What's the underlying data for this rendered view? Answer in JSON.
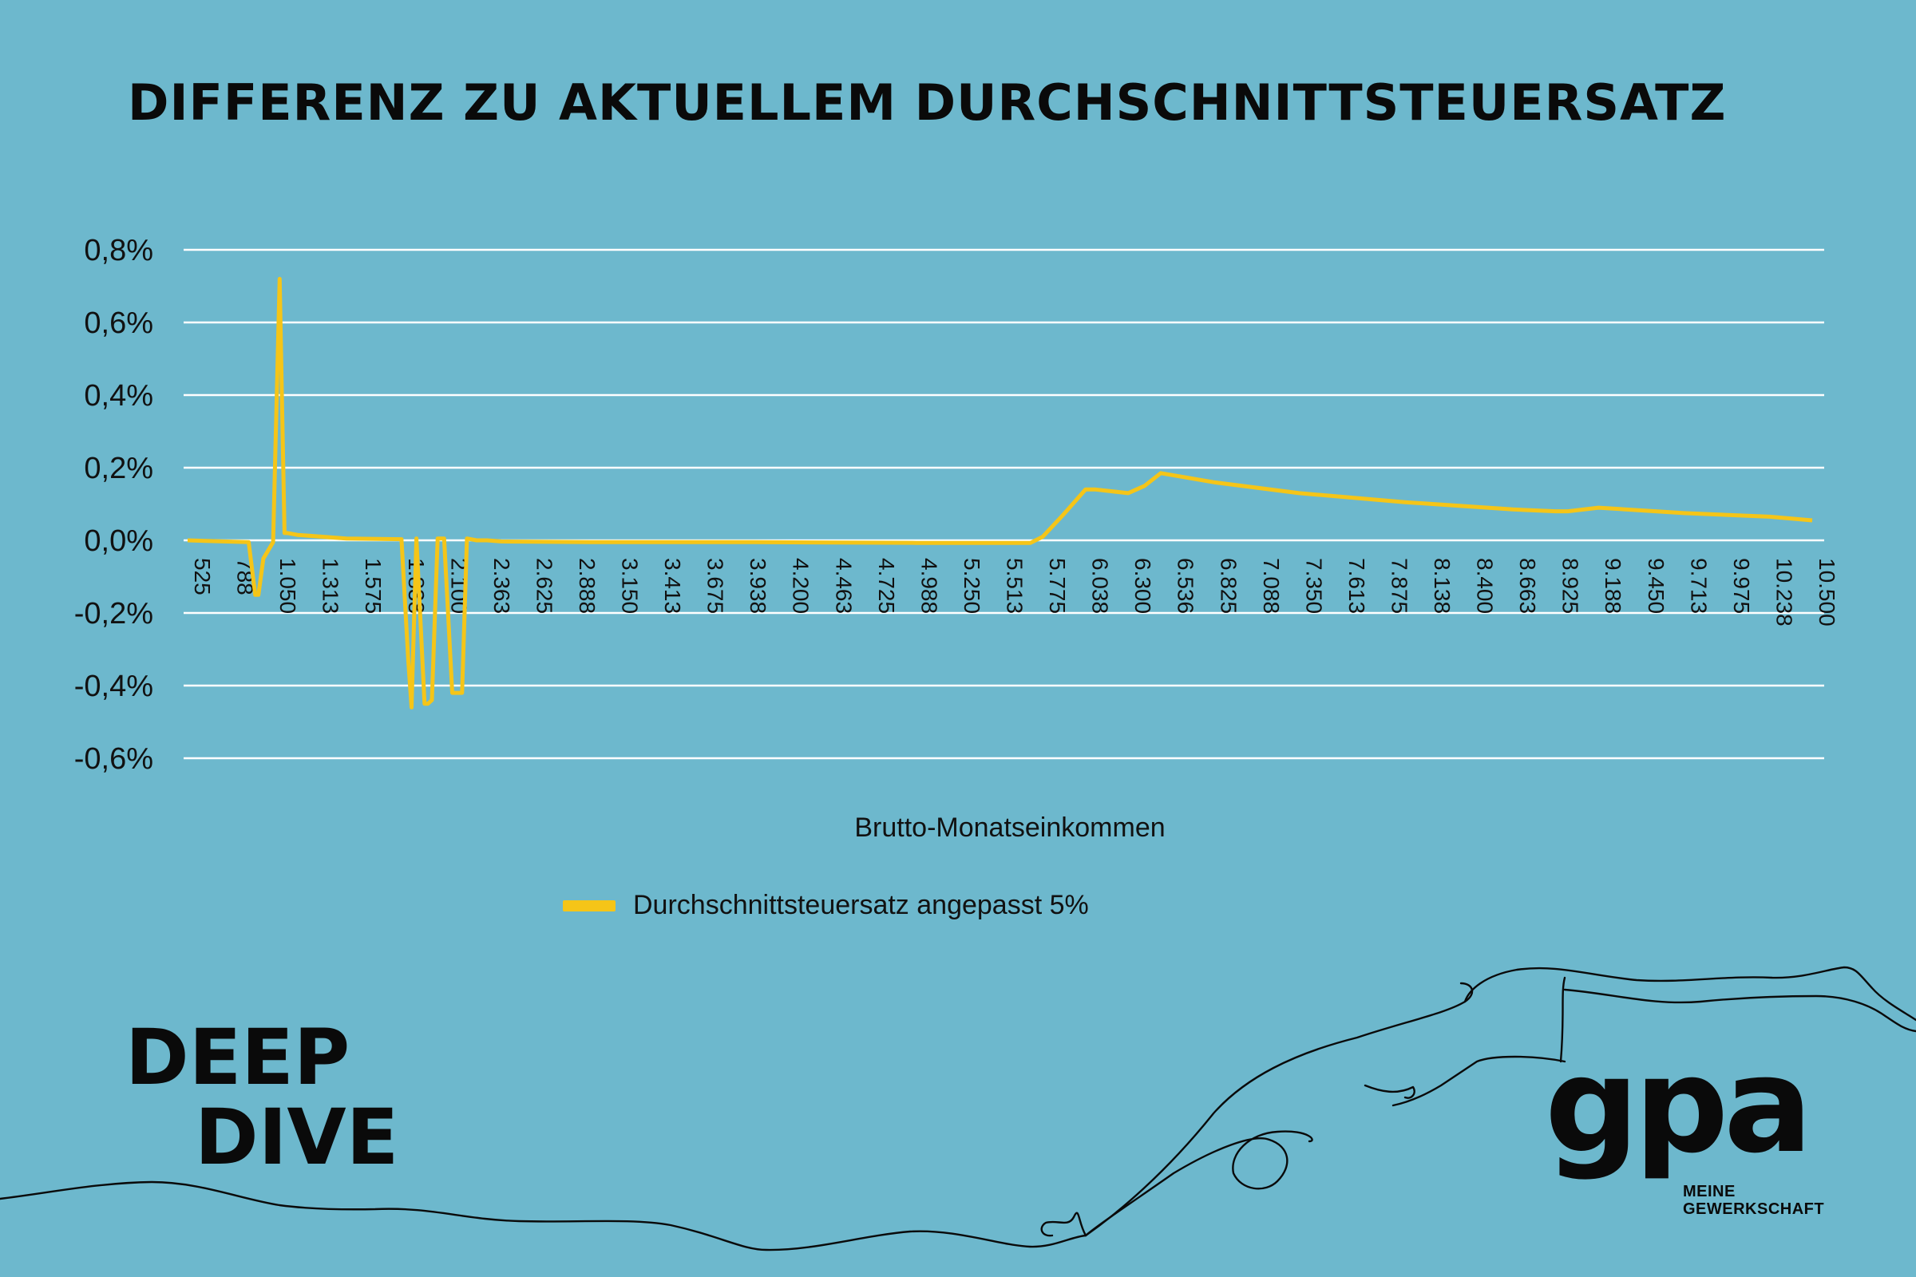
{
  "title": "DIFFERENZ ZU AKTUELLEM DURCHSCHNITTSTEUERSATZ",
  "branding": {
    "deep_dive_line1": "DEEP",
    "deep_dive_line2": "DIVE",
    "logo_text": "gpa",
    "tagline_line1": "MEINE",
    "tagline_line2": "GEWERKSCHAFT"
  },
  "colors": {
    "background": "#6db8cd",
    "series": "#f5c518",
    "grid": "#ffffff",
    "text": "#0a0a0a"
  },
  "chart_data": {
    "type": "line",
    "title": "DIFFERENZ ZU AKTUELLEM DURCHSCHNITTSTEUERSATZ",
    "xlabel": "Brutto-Monatseinkommen",
    "ylabel": "",
    "ylim": [
      -0.6,
      0.8
    ],
    "xlim": [
      525,
      10500
    ],
    "grid": true,
    "legend_position": "bottom",
    "y_ticks": [
      0.8,
      0.6,
      0.4,
      0.2,
      0.0,
      -0.2,
      -0.4,
      -0.6
    ],
    "y_tick_labels": [
      "0,8%",
      "0,6%",
      "0,4%",
      "0,2%",
      "0,0%",
      "-0,2%",
      "-0,4%",
      "-0,6%"
    ],
    "x_tick_labels": [
      "525",
      "788",
      "1.050",
      "1.313",
      "1.575",
      "1.838",
      "2.100",
      "2.363",
      "2.625",
      "2.888",
      "3.150",
      "3.413",
      "3.675",
      "3.938",
      "4.200",
      "4.463",
      "4.725",
      "4.988",
      "5.250",
      "5.513",
      "5.775",
      "6.038",
      "6.300",
      "6.536",
      "6.825",
      "7.088",
      "7.350",
      "7.613",
      "7.875",
      "8.138",
      "8.400",
      "8.663",
      "8.925",
      "9.188",
      "9.450",
      "9.713",
      "9.975",
      "10.238",
      "10.500"
    ],
    "series": [
      {
        "name": "Durchschnittsteuersatz angepasst 5%",
        "x": [
          525,
          900,
          940,
          960,
          990,
          1050,
          1090,
          1120,
          1140,
          1200,
          1500,
          1838,
          1880,
          1900,
          1930,
          1980,
          2000,
          2025,
          2060,
          2080,
          2100,
          2150,
          2180,
          2210,
          2240,
          2300,
          2330,
          2363,
          2450,
          3000,
          4000,
          5000,
          5700,
          5775,
          5900,
          6038,
          6100,
          6300,
          6350,
          6400,
          6500,
          6825,
          7350,
          8000,
          8663,
          8925,
          9000,
          9188,
          9713,
          10238,
          10500
        ],
        "y": [
          0.0,
          -0.005,
          -0.15,
          -0.15,
          -0.05,
          -0.005,
          0.72,
          0.02,
          0.02,
          0.015,
          0.005,
          0.003,
          -0.33,
          -0.46,
          0.005,
          -0.45,
          -0.45,
          -0.44,
          0.005,
          0.005,
          0.005,
          -0.42,
          -0.42,
          -0.42,
          0.005,
          0.0,
          0.0,
          0.0,
          -0.003,
          -0.005,
          -0.005,
          -0.007,
          -0.007,
          0.01,
          0.07,
          0.14,
          0.14,
          0.13,
          0.14,
          0.15,
          0.185,
          0.16,
          0.13,
          0.105,
          0.085,
          0.08,
          0.08,
          0.09,
          0.075,
          0.065,
          0.055
        ]
      }
    ]
  }
}
